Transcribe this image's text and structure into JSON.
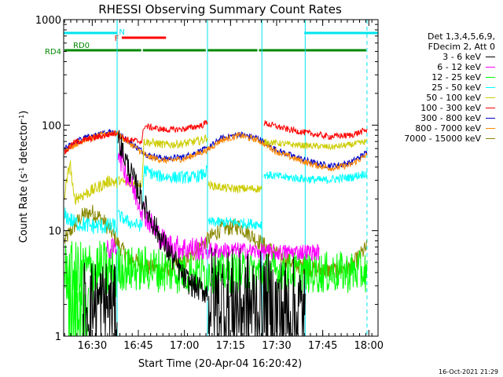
{
  "chart_data": {
    "type": "line",
    "title": "RHESSI Observing Summary Count Rates",
    "xlabel": "Start Time (20-Apr-04 16:20:42)",
    "ylabel_main": "Count Rate (s",
    "ylabel_sup1": "-1",
    "ylabel_mid": " detector",
    "ylabel_sup2": "-1",
    "ylabel_end": ")",
    "yscale": "log",
    "ylim": [
      1,
      1000
    ],
    "xlim": [
      16.345,
      18.05
    ],
    "x_tick_labels": [
      "16:30",
      "16:45",
      "17:00",
      "17:15",
      "17:30",
      "17:45",
      "18:00"
    ],
    "y_tick_labels": [
      "1",
      "10",
      "100",
      "1000"
    ],
    "legend": {
      "header1": "Det 1,3,4,5,6,9,",
      "header2": "FDecim 2, Att 0",
      "entries": [
        {
          "label": "3 - 6 keV",
          "color": "#000000"
        },
        {
          "label": "6 - 12 keV",
          "color": "#ff00ff"
        },
        {
          "label": "12 - 25 keV",
          "color": "#00ff00"
        },
        {
          "label": "25 - 50 keV",
          "color": "#00ffff"
        },
        {
          "label": "50 - 100 keV",
          "color": "#cccc00"
        },
        {
          "label": "100 - 300 keV",
          "color": "#ff0000"
        },
        {
          "label": "300 - 800 keV",
          "color": "#0000cc"
        },
        {
          "label": "800 - 7000 keV",
          "color": "#ff8800"
        },
        {
          "label": "7000 - 15000 keV",
          "color": "#888800"
        }
      ]
    },
    "flag_bars": {
      "N_label": "N",
      "F_label": "F",
      "RD0_label": "RD0",
      "RD4_label": "RD4",
      "N": [
        [
          16.345,
          16.635
        ],
        [
          17.65,
          18.05
        ]
      ],
      "F": [
        [
          16.66,
          16.9
        ]
      ],
      "RD0": [
        [
          16.345,
          16.77
        ],
        [
          16.77,
          17.12
        ],
        [
          17.12,
          17.4
        ],
        [
          17.4,
          17.99
        ]
      ]
    },
    "vlines_solid": [
      16.345,
      16.635,
      17.125,
      17.42,
      17.655
    ],
    "vlines_dashed": [
      16.635,
      17.99
    ],
    "series_segments": [
      {
        "name": "3 - 6 keV",
        "color": "#000000",
        "noise": 0.45,
        "points": [
          [
            16.45,
            2.0
          ],
          [
            16.6,
            2.0
          ],
          [
            16.635,
            1.5
          ]
        ]
      },
      {
        "name": "3 - 6 keV",
        "color": "#000000",
        "noise": 0.12,
        "points": [
          [
            16.64,
            78
          ],
          [
            16.66,
            60
          ],
          [
            16.7,
            38
          ],
          [
            16.75,
            24
          ],
          [
            16.8,
            15
          ],
          [
            16.85,
            10
          ],
          [
            16.9,
            7
          ],
          [
            16.95,
            5
          ],
          [
            17.0,
            3.5
          ],
          [
            17.05,
            3.0
          ],
          [
            17.1,
            2.7
          ],
          [
            17.125,
            2.6
          ]
        ]
      },
      {
        "name": "3 - 6 keV",
        "color": "#000000",
        "noise": 0.55,
        "points": [
          [
            17.13,
            2.2
          ],
          [
            17.25,
            2.0
          ],
          [
            17.42,
            1.8
          ],
          [
            17.5,
            1.7
          ],
          [
            17.655,
            1.6
          ]
        ]
      },
      {
        "name": "6 - 12 keV",
        "color": "#ff00ff",
        "noise": 0.1,
        "points": [
          [
            16.58,
            6.5
          ],
          [
            16.62,
            6.8
          ],
          [
            16.634,
            7.0
          ]
        ]
      },
      {
        "name": "6 - 12 keV",
        "color": "#ff00ff",
        "noise": 0.12,
        "points": [
          [
            16.64,
            60
          ],
          [
            16.66,
            45
          ],
          [
            16.7,
            30
          ],
          [
            16.75,
            19
          ],
          [
            16.8,
            13
          ],
          [
            16.85,
            9.5
          ],
          [
            16.9,
            7.5
          ],
          [
            16.95,
            7.0
          ],
          [
            17.0,
            6.8
          ],
          [
            17.1,
            6.7
          ],
          [
            17.124,
            6.6
          ]
        ]
      },
      {
        "name": "6 - 12 keV",
        "color": "#ff00ff",
        "noise": 0.08,
        "points": [
          [
            17.13,
            6.5
          ],
          [
            17.3,
            6.5
          ],
          [
            17.42,
            6.3
          ],
          [
            17.5,
            6.2
          ],
          [
            17.655,
            6.3
          ],
          [
            17.73,
            6.2
          ]
        ]
      },
      {
        "name": "12 - 25 keV",
        "color": "#00ff00",
        "noise": 0.3,
        "points": [
          [
            16.35,
            4.0
          ],
          [
            16.4,
            4.0
          ],
          [
            16.5,
            4.2
          ],
          [
            16.6,
            4.0
          ],
          [
            16.634,
            4.0
          ]
        ]
      },
      {
        "name": "12 - 25 keV",
        "color": "#00ff00",
        "noise": 0.22,
        "points": [
          [
            16.64,
            4.5
          ],
          [
            16.7,
            4.3
          ],
          [
            16.8,
            4.4
          ],
          [
            16.9,
            4.2
          ],
          [
            17.0,
            4.1
          ],
          [
            17.124,
            4.0
          ]
        ]
      },
      {
        "name": "12 - 25 keV",
        "color": "#00ff00",
        "noise": 0.2,
        "points": [
          [
            17.13,
            4.0
          ],
          [
            17.3,
            4.0
          ],
          [
            17.5,
            4.1
          ],
          [
            17.655,
            4.0
          ],
          [
            17.8,
            4.0
          ],
          [
            17.99,
            4.1
          ]
        ]
      },
      {
        "name": "12 - 25 keV",
        "color": "#00ff00",
        "noise": 0.55,
        "points": [
          [
            16.36,
            1.8
          ],
          [
            16.42,
            1.6
          ],
          [
            16.48,
            1.6
          ]
        ]
      },
      {
        "name": "25 - 50 keV",
        "color": "#00ffff",
        "noise": 0.08,
        "points": [
          [
            16.35,
            14
          ],
          [
            16.4,
            12
          ],
          [
            16.5,
            11
          ],
          [
            16.6,
            11
          ],
          [
            16.634,
            11
          ]
        ]
      },
      {
        "name": "25 - 50 keV",
        "color": "#00ffff",
        "noise": 0.06,
        "points": [
          [
            16.64,
            14
          ],
          [
            16.7,
            12
          ],
          [
            16.77,
            11
          ],
          [
            16.78,
            38
          ],
          [
            16.85,
            33
          ],
          [
            16.95,
            32
          ],
          [
            17.05,
            32
          ],
          [
            17.1,
            34
          ],
          [
            17.124,
            37
          ]
        ]
      },
      {
        "name": "25 - 50 keV",
        "color": "#00ffff",
        "noise": 0.05,
        "points": [
          [
            17.13,
            12
          ],
          [
            17.25,
            12
          ],
          [
            17.42,
            11.5
          ]
        ]
      },
      {
        "name": "25 - 50 keV",
        "color": "#00ffff",
        "noise": 0.04,
        "points": [
          [
            17.43,
            34
          ],
          [
            17.55,
            32
          ],
          [
            17.655,
            31
          ],
          [
            17.75,
            30
          ],
          [
            17.9,
            32
          ],
          [
            17.99,
            35
          ]
        ]
      },
      {
        "name": "50 - 100 keV",
        "color": "#cccc00",
        "noise": 0.06,
        "points": [
          [
            16.35,
            22
          ],
          [
            16.38,
            45
          ],
          [
            16.4,
            20
          ],
          [
            16.5,
            24
          ],
          [
            16.6,
            30
          ],
          [
            16.634,
            28
          ]
        ]
      },
      {
        "name": "50 - 100 keV",
        "color": "#cccc00",
        "noise": 0.04,
        "points": [
          [
            16.64,
            30
          ],
          [
            16.7,
            28
          ],
          [
            16.77,
            28
          ],
          [
            16.78,
            70
          ],
          [
            16.9,
            65
          ],
          [
            17.0,
            67
          ],
          [
            17.1,
            72
          ],
          [
            17.124,
            78
          ]
        ]
      },
      {
        "name": "50 - 100 keV",
        "color": "#cccc00",
        "noise": 0.04,
        "points": [
          [
            17.13,
            27
          ],
          [
            17.25,
            25
          ],
          [
            17.42,
            25
          ]
        ]
      },
      {
        "name": "50 - 100 keV",
        "color": "#cccc00",
        "noise": 0.03,
        "points": [
          [
            17.43,
            70
          ],
          [
            17.55,
            66
          ],
          [
            17.655,
            64
          ],
          [
            17.8,
            62
          ],
          [
            17.9,
            65
          ],
          [
            17.99,
            70
          ]
        ]
      },
      {
        "name": "100 - 300 keV",
        "color": "#ff0000",
        "noise": 0.03,
        "points": [
          [
            16.35,
            55
          ],
          [
            16.4,
            68
          ],
          [
            16.5,
            75
          ],
          [
            16.6,
            82
          ],
          [
            16.634,
            85
          ]
        ]
      },
      {
        "name": "100 - 300 keV",
        "color": "#ff0000",
        "noise": 0.03,
        "points": [
          [
            16.64,
            80
          ],
          [
            16.7,
            72
          ],
          [
            16.77,
            70
          ],
          [
            16.78,
            98
          ],
          [
            16.9,
            90
          ],
          [
            17.0,
            92
          ],
          [
            17.1,
            100
          ],
          [
            17.124,
            108
          ]
        ]
      },
      {
        "name": "100 - 300 keV",
        "color": "#ff0000",
        "noise": 0.03,
        "points": [
          [
            17.43,
            105
          ],
          [
            17.55,
            92
          ],
          [
            17.655,
            85
          ],
          [
            17.78,
            78
          ],
          [
            17.9,
            80
          ],
          [
            17.99,
            90
          ]
        ]
      },
      {
        "name": "300 - 800 keV",
        "color": "#0000cc",
        "noise": 0.03,
        "points": [
          [
            16.35,
            60
          ],
          [
            16.45,
            75
          ],
          [
            16.55,
            82
          ],
          [
            16.6,
            88
          ],
          [
            16.634,
            85
          ],
          [
            16.7,
            70
          ],
          [
            16.8,
            52
          ],
          [
            16.9,
            48
          ],
          [
            17.0,
            50
          ],
          [
            17.124,
            60
          ],
          [
            17.2,
            75
          ],
          [
            17.3,
            82
          ],
          [
            17.4,
            75
          ],
          [
            17.5,
            58
          ],
          [
            17.6,
            50
          ],
          [
            17.7,
            44
          ],
          [
            17.8,
            41
          ],
          [
            17.9,
            44
          ],
          [
            17.99,
            55
          ]
        ]
      },
      {
        "name": "800 - 7000 keV",
        "color": "#ff8800",
        "noise": 0.03,
        "points": [
          [
            16.35,
            58
          ],
          [
            16.45,
            72
          ],
          [
            16.55,
            80
          ],
          [
            16.6,
            85
          ],
          [
            16.634,
            83
          ],
          [
            16.7,
            68
          ],
          [
            16.8,
            50
          ],
          [
            16.9,
            46
          ],
          [
            17.0,
            48
          ],
          [
            17.124,
            58
          ],
          [
            17.2,
            72
          ],
          [
            17.3,
            80
          ],
          [
            17.4,
            72
          ],
          [
            17.5,
            56
          ],
          [
            17.6,
            48
          ],
          [
            17.7,
            42
          ],
          [
            17.8,
            39
          ],
          [
            17.9,
            42
          ],
          [
            17.99,
            52
          ]
        ]
      },
      {
        "name": "7000 - 15000 keV",
        "color": "#888800",
        "noise": 0.08,
        "points": [
          [
            16.35,
            8
          ],
          [
            16.4,
            11
          ],
          [
            16.45,
            14
          ],
          [
            16.5,
            15
          ],
          [
            16.55,
            13
          ],
          [
            16.6,
            10
          ],
          [
            16.65,
            7
          ],
          [
            16.7,
            5.5
          ],
          [
            16.8,
            4.5
          ],
          [
            16.9,
            4.3
          ],
          [
            17.0,
            5
          ],
          [
            17.1,
            7.5
          ],
          [
            17.2,
            10.5
          ],
          [
            17.3,
            11
          ],
          [
            17.4,
            8
          ],
          [
            17.5,
            6
          ],
          [
            17.6,
            4.8
          ],
          [
            17.7,
            4.3
          ],
          [
            17.8,
            4.2
          ],
          [
            17.9,
            4.5
          ],
          [
            17.99,
            7
          ]
        ]
      }
    ]
  },
  "footer": {
    "date": "16-Oct-2021 21:29"
  }
}
